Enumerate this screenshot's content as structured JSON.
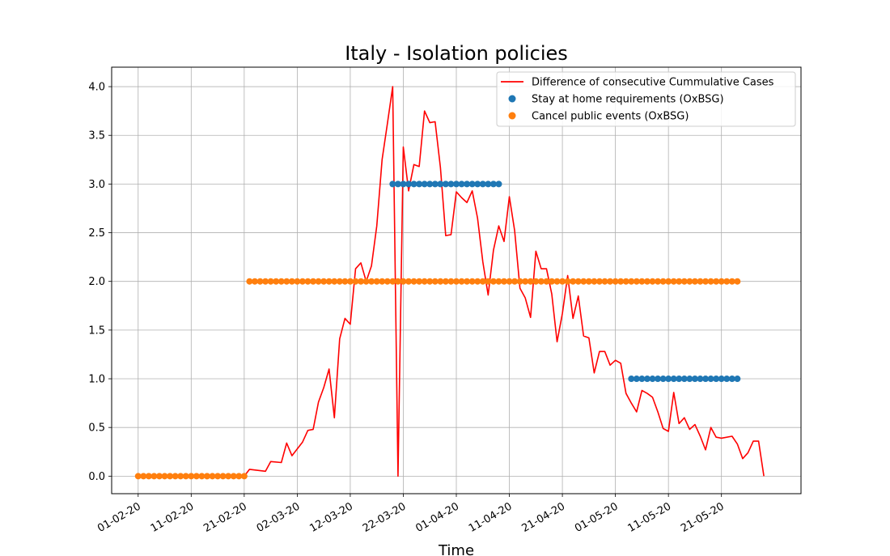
{
  "chart_data": {
    "type": "line",
    "title": "Italy - Isolation policies",
    "xlabel": "Time",
    "ylabel": "",
    "x_type": "date",
    "xlim": [
      "2020-01-27",
      "2020-06-05"
    ],
    "ylim": [
      -0.18,
      4.2
    ],
    "yticks": [
      0.0,
      0.5,
      1.0,
      1.5,
      2.0,
      2.5,
      3.0,
      3.5,
      4.0
    ],
    "ytick_labels": [
      "0.0",
      "0.5",
      "1.0",
      "1.5",
      "2.0",
      "2.5",
      "3.0",
      "3.5",
      "4.0"
    ],
    "xticks": [
      "2020-02-01",
      "2020-02-11",
      "2020-02-21",
      "2020-03-02",
      "2020-03-12",
      "2020-03-22",
      "2020-04-01",
      "2020-04-11",
      "2020-04-21",
      "2020-05-01",
      "2020-05-11",
      "2020-05-21"
    ],
    "xtick_labels": [
      "01-02-20",
      "11-02-20",
      "21-02-20",
      "02-03-20",
      "12-03-20",
      "22-03-20",
      "01-04-20",
      "11-04-20",
      "21-04-20",
      "01-05-20",
      "11-05-20",
      "21-05-20"
    ],
    "grid": true,
    "legend_position": "top-right",
    "series": [
      {
        "name": "Difference of consecutive Cummulative Cases",
        "kind": "line",
        "color": "#ff0000",
        "points": [
          [
            "2020-02-21",
            0.0
          ],
          [
            "2020-02-22",
            0.07
          ],
          [
            "2020-02-25",
            0.05
          ],
          [
            "2020-02-26",
            0.15
          ],
          [
            "2020-02-28",
            0.14
          ],
          [
            "2020-02-29",
            0.34
          ],
          [
            "2020-03-01",
            0.21
          ],
          [
            "2020-03-03",
            0.35
          ],
          [
            "2020-03-04",
            0.47
          ],
          [
            "2020-03-05",
            0.48
          ],
          [
            "2020-03-06",
            0.76
          ],
          [
            "2020-03-07",
            0.91
          ],
          [
            "2020-03-08",
            1.1
          ],
          [
            "2020-03-09",
            0.6
          ],
          [
            "2020-03-10",
            1.41
          ],
          [
            "2020-03-11",
            1.62
          ],
          [
            "2020-03-12",
            1.56
          ],
          [
            "2020-03-13",
            2.13
          ],
          [
            "2020-03-14",
            2.19
          ],
          [
            "2020-03-15",
            2.0
          ],
          [
            "2020-03-16",
            2.16
          ],
          [
            "2020-03-17",
            2.57
          ],
          [
            "2020-03-18",
            3.25
          ],
          [
            "2020-03-19",
            3.62
          ],
          [
            "2020-03-20",
            4.0
          ],
          [
            "2020-03-21",
            0.0
          ],
          [
            "2020-03-22",
            3.38
          ],
          [
            "2020-03-23",
            2.93
          ],
          [
            "2020-03-24",
            3.2
          ],
          [
            "2020-03-25",
            3.18
          ],
          [
            "2020-03-26",
            3.75
          ],
          [
            "2020-03-27",
            3.63
          ],
          [
            "2020-03-28",
            3.64
          ],
          [
            "2020-03-29",
            3.17
          ],
          [
            "2020-03-30",
            2.47
          ],
          [
            "2020-03-31",
            2.48
          ],
          [
            "2020-04-01",
            2.92
          ],
          [
            "2020-04-02",
            2.86
          ],
          [
            "2020-04-03",
            2.81
          ],
          [
            "2020-04-04",
            2.93
          ],
          [
            "2020-04-05",
            2.65
          ],
          [
            "2020-04-06",
            2.2
          ],
          [
            "2020-04-07",
            1.86
          ],
          [
            "2020-04-08",
            2.32
          ],
          [
            "2020-04-09",
            2.57
          ],
          [
            "2020-04-10",
            2.41
          ],
          [
            "2020-04-11",
            2.87
          ],
          [
            "2020-04-12",
            2.52
          ],
          [
            "2020-04-13",
            1.93
          ],
          [
            "2020-04-14",
            1.83
          ],
          [
            "2020-04-15",
            1.63
          ],
          [
            "2020-04-16",
            2.31
          ],
          [
            "2020-04-17",
            2.13
          ],
          [
            "2020-04-18",
            2.13
          ],
          [
            "2020-04-19",
            1.87
          ],
          [
            "2020-04-20",
            1.38
          ],
          [
            "2020-04-21",
            1.67
          ],
          [
            "2020-04-22",
            2.06
          ],
          [
            "2020-04-23",
            1.62
          ],
          [
            "2020-04-24",
            1.85
          ],
          [
            "2020-04-25",
            1.44
          ],
          [
            "2020-04-26",
            1.42
          ],
          [
            "2020-04-27",
            1.06
          ],
          [
            "2020-04-28",
            1.28
          ],
          [
            "2020-04-29",
            1.28
          ],
          [
            "2020-04-30",
            1.14
          ],
          [
            "2020-05-01",
            1.19
          ],
          [
            "2020-05-02",
            1.16
          ],
          [
            "2020-05-03",
            0.85
          ],
          [
            "2020-05-04",
            0.75
          ],
          [
            "2020-05-05",
            0.66
          ],
          [
            "2020-05-06",
            0.88
          ],
          [
            "2020-05-07",
            0.85
          ],
          [
            "2020-05-08",
            0.81
          ],
          [
            "2020-05-09",
            0.66
          ],
          [
            "2020-05-10",
            0.49
          ],
          [
            "2020-05-11",
            0.46
          ],
          [
            "2020-05-12",
            0.86
          ],
          [
            "2020-05-13",
            0.54
          ],
          [
            "2020-05-14",
            0.6
          ],
          [
            "2020-05-15",
            0.48
          ],
          [
            "2020-05-16",
            0.53
          ],
          [
            "2020-05-17",
            0.41
          ],
          [
            "2020-05-18",
            0.27
          ],
          [
            "2020-05-19",
            0.5
          ],
          [
            "2020-05-20",
            0.4
          ],
          [
            "2020-05-21",
            0.39
          ],
          [
            "2020-05-23",
            0.41
          ],
          [
            "2020-05-24",
            0.33
          ],
          [
            "2020-05-25",
            0.18
          ],
          [
            "2020-05-26",
            0.24
          ],
          [
            "2020-05-27",
            0.36
          ],
          [
            "2020-05-28",
            0.36
          ],
          [
            "2020-05-29",
            0.0
          ]
        ]
      },
      {
        "name": "Stay at home requirements (OxBSG)",
        "kind": "scatter",
        "color": "#1f77b4",
        "runs": [
          {
            "start": "2020-03-20",
            "end": "2020-04-09",
            "value": 3.0
          },
          {
            "start": "2020-05-04",
            "end": "2020-05-24",
            "value": 1.0
          }
        ]
      },
      {
        "name": "Cancel public events (OxBSG)",
        "kind": "scatter",
        "color": "#ff7f0e",
        "runs": [
          {
            "start": "2020-02-01",
            "end": "2020-02-21",
            "value": 0.0
          },
          {
            "start": "2020-02-22",
            "end": "2020-05-24",
            "value": 2.0
          }
        ]
      }
    ]
  }
}
